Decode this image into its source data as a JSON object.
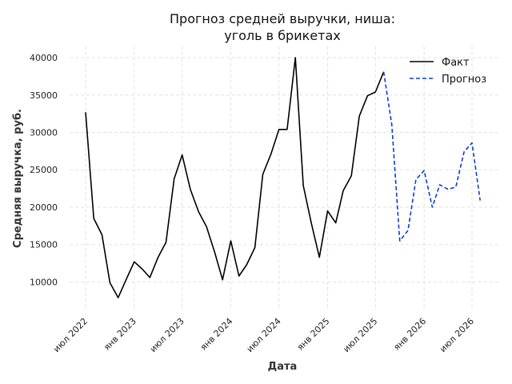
{
  "chart_data": {
    "type": "line",
    "title_line1": "Прогноз средней выручки, ниша:",
    "title_line2": "уголь в брикетах",
    "xlabel": "Дата",
    "ylabel": "Средняя выручка, руб.",
    "ylim": [
      6200,
      41500
    ],
    "yticks": [
      10000,
      15000,
      20000,
      25000,
      30000,
      35000,
      40000
    ],
    "yticklabels": [
      "10000",
      "15000",
      "20000",
      "25000",
      "30000",
      "35000",
      "40000"
    ],
    "xticks": [
      "2022-07-01",
      "2023-01-01",
      "2023-07-01",
      "2024-01-01",
      "2024-07-01",
      "2025-01-01",
      "2025-07-01",
      "2026-01-01",
      "2026-07-01"
    ],
    "xticklabels": [
      "июл 2022",
      "янв 2023",
      "июл 2023",
      "янв 2024",
      "июл 2024",
      "янв 2025",
      "июл 2025",
      "янв 2026",
      "июл 2026"
    ],
    "legend_position": "top-right",
    "grid": true,
    "series": [
      {
        "name": "Факт",
        "color": "#000000",
        "style": "solid",
        "x": [
          "2022-07-01",
          "2022-08-01",
          "2022-09-01",
          "2022-10-01",
          "2022-11-01",
          "2022-12-01",
          "2023-01-01",
          "2023-02-01",
          "2023-03-01",
          "2023-04-01",
          "2023-05-01",
          "2023-06-01",
          "2023-07-01",
          "2023-08-01",
          "2023-09-01",
          "2023-10-01",
          "2023-11-01",
          "2023-12-01",
          "2024-01-01",
          "2024-02-01",
          "2024-03-01",
          "2024-04-01",
          "2024-05-01",
          "2024-06-01",
          "2024-07-01",
          "2024-08-01",
          "2024-09-01",
          "2024-10-01",
          "2024-11-01",
          "2024-12-01",
          "2025-01-01",
          "2025-02-01",
          "2025-03-01",
          "2025-04-01",
          "2025-05-01",
          "2025-06-01",
          "2025-07-01",
          "2025-08-01"
        ],
        "y": [
          32700,
          18500,
          16300,
          9900,
          7900,
          10300,
          12700,
          11700,
          10600,
          13300,
          15300,
          23800,
          27000,
          22400,
          19400,
          17400,
          14000,
          10300,
          15500,
          10800,
          12300,
          14600,
          24400,
          27100,
          30400,
          30400,
          40000,
          22900,
          17800,
          13300,
          19500,
          17900,
          22200,
          24200,
          32200,
          34900,
          35400,
          38100
        ]
      },
      {
        "name": "Прогноз",
        "color": "#0b3fd1",
        "style": "dashed",
        "x": [
          "2025-08-01",
          "2025-09-01",
          "2025-10-01",
          "2025-11-01",
          "2025-12-01",
          "2026-01-01",
          "2026-02-01",
          "2026-03-01",
          "2026-04-01",
          "2026-05-01",
          "2026-06-01",
          "2026-07-01",
          "2026-08-01"
        ],
        "y": [
          38100,
          31000,
          15500,
          16900,
          23700,
          24900,
          20000,
          23000,
          22400,
          22700,
          27400,
          28600,
          20900
        ]
      }
    ]
  }
}
